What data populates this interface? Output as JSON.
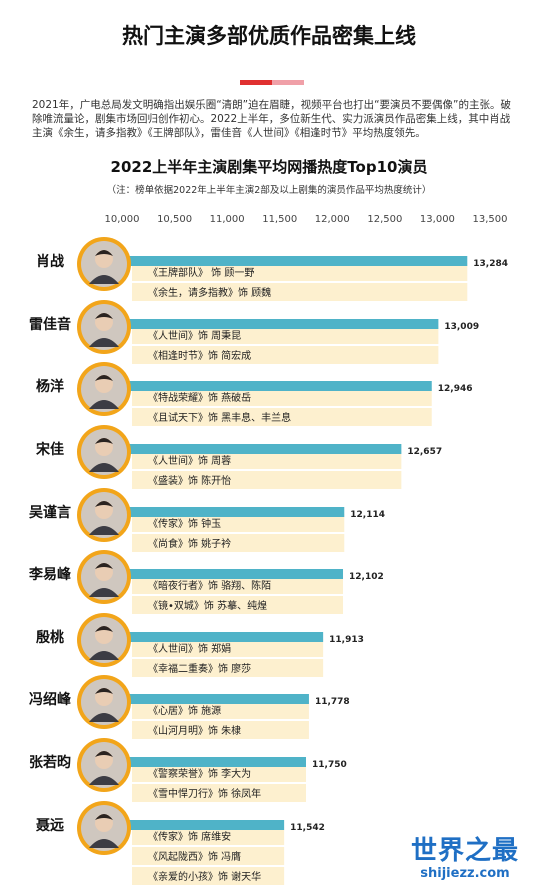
{
  "header": {
    "title": "热门主演多部优质作品密集上线",
    "accent_colors": [
      "#e03030",
      "#f0a0a8"
    ]
  },
  "intro": {
    "text": "2021年，广电总局发文明确指出娱乐圈“清朗”迫在眉睫，视频平台也打出“要演员不要偶像”的主张。破除唯流量论，剧集市场回归创作初心。2022上半年，多位新生代、实力派演员作品密集上线，其中肖战主演《余生，请多指教》《王牌部队》，雷佳音《人世间》《相逢时节》平均热度领先。"
  },
  "chart_data": {
    "type": "bar",
    "title": "2022上半年主演剧集平均网播热度Top10演员",
    "subtitle": "（注：榜单依据2022年上半年主演2部及以上剧集的演员作品平均热度统计）",
    "xlabel": "",
    "ylabel": "",
    "xlim": [
      10000,
      13500
    ],
    "ticks": [
      10000,
      10500,
      11000,
      11500,
      12000,
      12500,
      13000,
      13500
    ],
    "tick_labels": [
      "10,000",
      "10,500",
      "11,000",
      "11,500",
      "12,000",
      "12,500",
      "13,000",
      "13,500"
    ],
    "categories": [
      "肖战",
      "雷佳音",
      "杨洋",
      "宋佳",
      "吴谨言",
      "李易峰",
      "殷桃",
      "冯绍峰",
      "张若昀",
      "聂远"
    ],
    "values": [
      13284,
      13009,
      12946,
      12657,
      12114,
      12102,
      11913,
      11778,
      11750,
      11542
    ],
    "value_labels": [
      "13,284",
      "13,009",
      "12,946",
      "12,657",
      "12,114",
      "12,102",
      "11,913",
      "11,778",
      "11,750",
      "11,542"
    ],
    "works": [
      [
        "《王牌部队》 饰 顾一野",
        "《余生，请多指教》饰 顾魏"
      ],
      [
        "《人世间》饰 周秉昆",
        "《相逢时节》饰 简宏成"
      ],
      [
        "《特战荣耀》饰 燕破岳",
        "《且试天下》饰  黑丰息、丰兰息"
      ],
      [
        "《人世间》饰 周蓉",
        "《盛装》饰 陈开怡"
      ],
      [
        "《传家》饰 钟玉",
        "《尚食》饰 姚子衿"
      ],
      [
        "《暗夜行者》饰 骆翔、陈陌",
        "《镜•双城》饰 苏摹、纯煌"
      ],
      [
        "《人世间》饰 郑娟",
        "《幸福二重奏》饰 廖莎"
      ],
      [
        "《心居》饰 施源",
        "《山河月明》饰 朱棣"
      ],
      [
        "《警察荣誉》饰 李大为",
        "《雪中悍刀行》饰 徐凤年"
      ],
      [
        "《传家》饰 席维安",
        "《风起陇西》饰 冯膺",
        "《亲爱的小孩》饰 谢天华"
      ]
    ],
    "colors": {
      "bar": "#4fb3c8",
      "work": "#fdf0cf",
      "avatar_ring": "#f2a51a"
    },
    "grid": false,
    "legend": "none"
  },
  "watermark": {
    "main": "世界之最",
    "sub": "shijiezz.com"
  }
}
